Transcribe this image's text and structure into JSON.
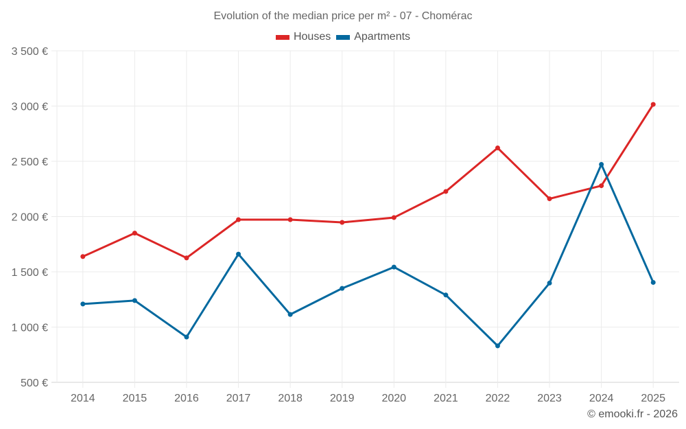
{
  "chart_data": {
    "type": "line",
    "title": "Evolution of the median price per m² - 07 - Chomérac",
    "xlabel": "",
    "ylabel": "",
    "x": [
      "2014",
      "2015",
      "2016",
      "2017",
      "2018",
      "2019",
      "2020",
      "2021",
      "2022",
      "2023",
      "2024",
      "2025"
    ],
    "ylim": [
      500,
      3500
    ],
    "yticks": [
      500,
      1000,
      1500,
      2000,
      2500,
      3000,
      3500
    ],
    "ytick_labels": [
      "500 €",
      "1 000 €",
      "1 500 €",
      "2 000 €",
      "2 500 €",
      "3 000 €",
      "3 500 €"
    ],
    "grid": true,
    "legend_position": "top-center",
    "series": [
      {
        "name": "Houses",
        "color": "#dc2626",
        "values": [
          1638,
          1850,
          1626,
          1972,
          1972,
          1947,
          1991,
          2227,
          2621,
          2161,
          2279,
          3015
        ]
      },
      {
        "name": "Apartments",
        "color": "#04699f",
        "values": [
          1209,
          1240,
          910,
          1660,
          1114,
          1350,
          1543,
          1290,
          830,
          1398,
          2472,
          1404
        ]
      }
    ]
  },
  "credit": "© emooki.fr - 2026"
}
